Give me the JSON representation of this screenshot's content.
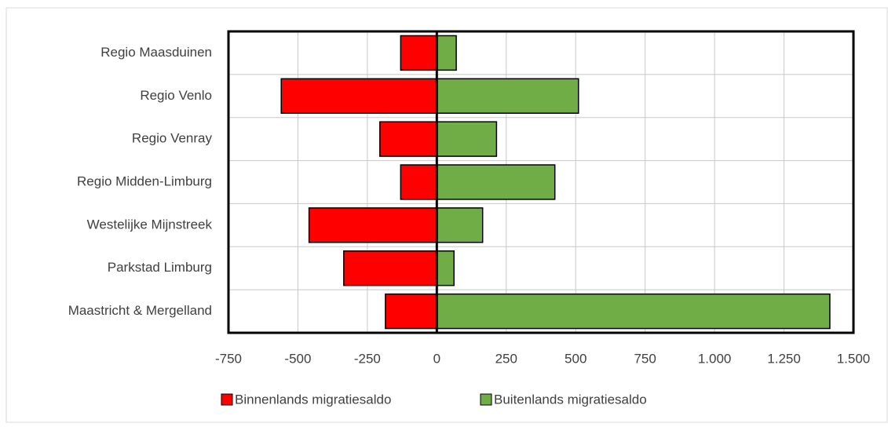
{
  "chart_data": {
    "type": "bar",
    "orientation": "horizontal",
    "categories": [
      "Regio Maasduinen",
      "Regio Venlo",
      "Regio Venray",
      "Regio Midden-Limburg",
      "Westelijke Mijnstreek",
      "Parkstad Limburg",
      "Maastricht & Mergelland"
    ],
    "series": [
      {
        "name": "Binnenlands migratiesaldo",
        "color": "#ff0000",
        "values": [
          -130,
          -560,
          -205,
          -130,
          -460,
          -335,
          -185
        ]
      },
      {
        "name": "Buitenlands migratiesaldo",
        "color": "#70ad47",
        "values": [
          70,
          510,
          215,
          425,
          165,
          62,
          1415
        ]
      }
    ],
    "xlim": [
      -750,
      1500
    ],
    "xticks": [
      -750,
      -500,
      -250,
      0,
      250,
      500,
      750,
      {
        "value": 1000,
        "label": "1.000"
      },
      {
        "value": 1250,
        "label": "1.250"
      },
      {
        "value": 1500,
        "label": "1.500"
      }
    ],
    "grid": true,
    "legend": "bottom"
  }
}
